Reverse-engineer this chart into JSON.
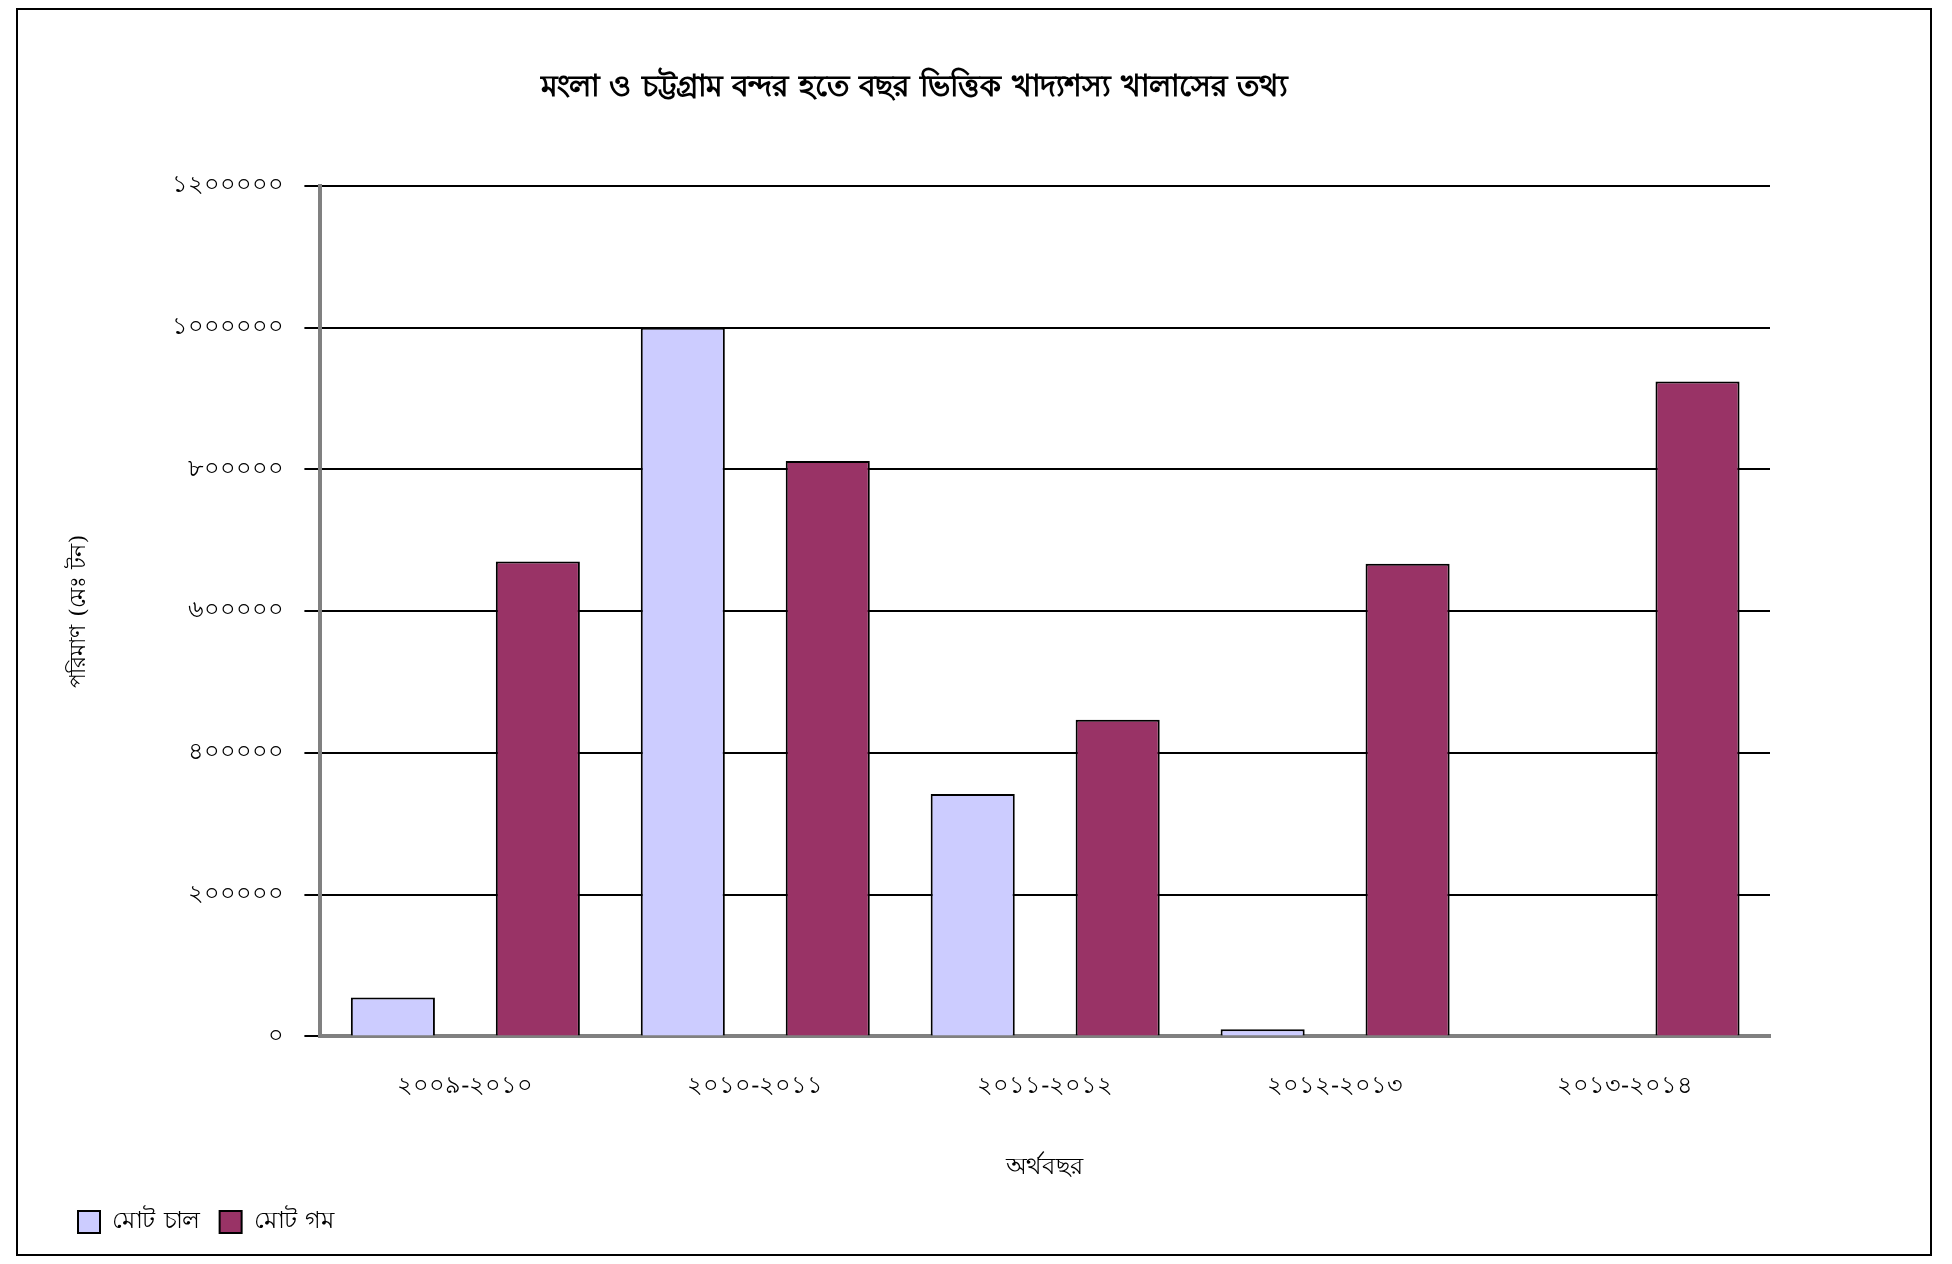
{
  "chart_data": {
    "type": "bar",
    "title": "মংলা ও চট্টগ্রাম বন্দর হতে বছর ভিত্তিক খাদ্যশস্য খালাসের তথ্য",
    "xlabel": "অর্থবছর",
    "ylabel": "পরিমাণ (মেঃ টন)",
    "categories": [
      "২০০৯-২০১০",
      "২০১০-২০১১",
      "২০১১-২০১২",
      "২০১২-২০১৩",
      "২০১৩-২০১৪"
    ],
    "series": [
      {
        "name": "মোট চাল",
        "color": "#ccccff",
        "values": [
          55000,
          1000000,
          342000,
          10000,
          null
        ]
      },
      {
        "name": "মোট গম",
        "color": "#993366",
        "values": [
          670000,
          812000,
          447000,
          667000,
          924000
        ]
      }
    ],
    "ylim": [
      0,
      1200000
    ],
    "yticks": [
      {
        "value": 0,
        "label": "০"
      },
      {
        "value": 200000,
        "label": "২০০০০০"
      },
      {
        "value": 400000,
        "label": "৪০০০০০"
      },
      {
        "value": 600000,
        "label": "৬০০০০০"
      },
      {
        "value": 800000,
        "label": "৮০০০০০"
      },
      {
        "value": 1000000,
        "label": "১০০০০০০"
      },
      {
        "value": 1200000,
        "label": "১২০০০০০"
      }
    ],
    "grid": "y",
    "legend": "bottom left"
  }
}
